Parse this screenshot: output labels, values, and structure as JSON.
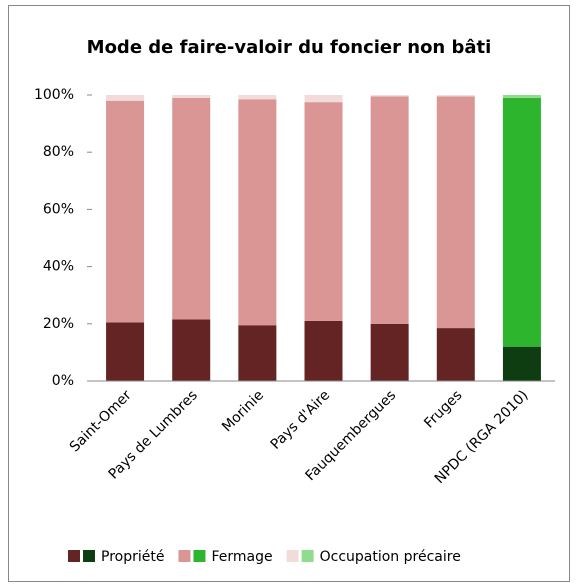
{
  "chart_data": {
    "type": "stacked_bar",
    "title": "Mode de faire-valoir du foncier non bâti",
    "categories": [
      "Saint-Omer",
      "Pays de Lumbres",
      "Morinie",
      "Pays d'Aire",
      "Fauquembergues",
      "Fruges",
      "NPDC (RGA 2010)"
    ],
    "series": [
      {
        "name": "Propriété",
        "colors": [
          "#632423",
          "#632423",
          "#632423",
          "#632423",
          "#632423",
          "#632423",
          "#0f3d12"
        ],
        "values": [
          20.5,
          21.5,
          19.5,
          21,
          20,
          18.5,
          12
        ]
      },
      {
        "name": "Fermage",
        "colors": [
          "#d99694",
          "#d99694",
          "#d99694",
          "#d99694",
          "#d99694",
          "#d99694",
          "#2db52d"
        ],
        "values": [
          77.5,
          77.5,
          79,
          76.5,
          79.5,
          81,
          87
        ]
      },
      {
        "name": "Occupation précaire",
        "colors": [
          "#f2dcdb",
          "#f2dcdb",
          "#f2dcdb",
          "#f2dcdb",
          "#f2dcdb",
          "#f2dcdb",
          "#8fdc8f"
        ],
        "values": [
          2,
          1,
          1.5,
          2.5,
          0.5,
          0.5,
          1
        ]
      }
    ],
    "ylim": [
      0,
      100
    ],
    "yticks": [
      {
        "value": 0,
        "label": "0%"
      },
      {
        "value": 20,
        "label": "20%"
      },
      {
        "value": 40,
        "label": "40%"
      },
      {
        "value": 60,
        "label": "60%"
      },
      {
        "value": 80,
        "label": "80%"
      },
      {
        "value": 100,
        "label": "100%"
      }
    ],
    "grid": false
  }
}
